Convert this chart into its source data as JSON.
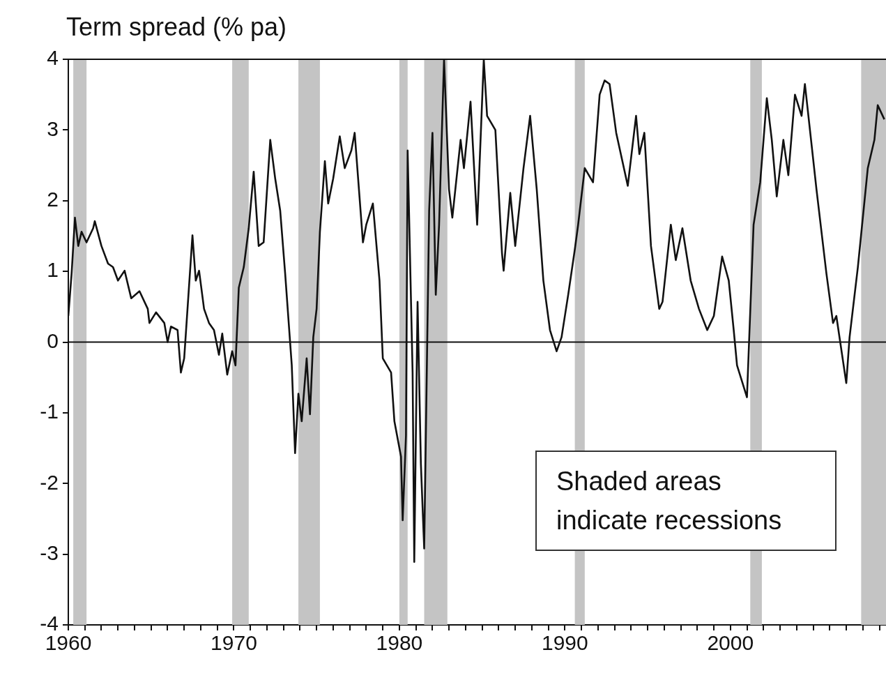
{
  "chart_data": {
    "type": "line",
    "ylabel": "Term spread (% pa)",
    "annotations": [
      "Shaded areas indicate recessions"
    ],
    "x": [
      1960.0,
      1960.2,
      1960.4,
      1960.6,
      1960.8,
      1961.1,
      1961.5,
      1961.6,
      1962.0,
      1962.4,
      1962.7,
      1963.0,
      1963.4,
      1963.8,
      1964.3,
      1964.8,
      1964.9,
      1965.3,
      1965.8,
      1966.0,
      1966.2,
      1966.6,
      1966.8,
      1967.0,
      1967.5,
      1967.7,
      1967.9,
      1968.2,
      1968.5,
      1968.8,
      1969.1,
      1969.3,
      1969.6,
      1969.9,
      1970.1,
      1970.3,
      1970.6,
      1970.9,
      1971.2,
      1971.5,
      1971.8,
      1972.2,
      1972.5,
      1972.8,
      1973.1,
      1973.5,
      1973.7,
      1973.9,
      1974.1,
      1974.4,
      1974.6,
      1974.8,
      1975.0,
      1975.2,
      1975.5,
      1975.7,
      1976.0,
      1976.4,
      1976.7,
      1977.1,
      1977.3,
      1977.8,
      1978.0,
      1978.4,
      1978.8,
      1979.0,
      1979.5,
      1979.7,
      1980.1,
      1980.2,
      1980.4,
      1980.5,
      1980.8,
      1980.9,
      1981.1,
      1981.3,
      1981.5,
      1981.8,
      1982.0,
      1982.2,
      1982.4,
      1982.7,
      1983.0,
      1983.2,
      1983.7,
      1983.9,
      1984.3,
      1984.7,
      1985.1,
      1985.3,
      1985.8,
      1986.2,
      1986.3,
      1986.7,
      1987.0,
      1987.5,
      1987.9,
      1988.3,
      1988.7,
      1989.1,
      1989.5,
      1989.8,
      1990.2,
      1990.6,
      1990.8,
      1991.2,
      1991.7,
      1992.1,
      1992.4,
      1992.7,
      1993.1,
      1993.8,
      1994.3,
      1994.5,
      1994.8,
      1995.2,
      1995.7,
      1995.9,
      1996.4,
      1996.7,
      1997.1,
      1997.6,
      1998.1,
      1998.6,
      1999.0,
      1999.5,
      1999.9,
      2000.2,
      2000.4,
      2001.0,
      2001.4,
      2001.8,
      2002.2,
      2002.5,
      2002.8,
      2003.2,
      2003.5,
      2003.9,
      2004.3,
      2004.5,
      2005.2,
      2005.8,
      2006.2,
      2006.4,
      2007.0,
      2007.2,
      2007.7,
      2008.3,
      2008.7,
      2008.9,
      2009.3
    ],
    "series": [
      {
        "color": "#111111",
        "values": [
          0.37,
          0.97,
          1.76,
          1.36,
          1.56,
          1.41,
          1.61,
          1.71,
          1.36,
          1.11,
          1.06,
          0.87,
          1.01,
          0.62,
          0.72,
          0.47,
          0.27,
          0.42,
          0.27,
          0,
          0.22,
          0.17,
          -0.43,
          -0.23,
          1.51,
          0.87,
          1.01,
          0.47,
          0.27,
          0.17,
          -0.18,
          0.12,
          -0.46,
          -0.13,
          -0.33,
          0.77,
          1.06,
          1.61,
          2.41,
          1.36,
          1.41,
          2.86,
          2.31,
          1.86,
          0.97,
          -0.33,
          -1.57,
          -0.73,
          -1.12,
          -0.23,
          -1.02,
          0.07,
          0.47,
          1.56,
          2.56,
          1.96,
          2.31,
          2.91,
          2.46,
          2.71,
          2.96,
          1.41,
          1.66,
          1.96,
          0.87,
          -0.23,
          -0.43,
          -1.12,
          -1.62,
          -2.52,
          -1.32,
          2.71,
          -0.43,
          -3.11,
          0.57,
          -1.72,
          -2.92,
          1.86,
          2.96,
          0.67,
          1.66,
          4,
          2.16,
          1.76,
          2.86,
          2.46,
          3.4,
          1.66,
          4,
          3.2,
          3.0,
          1.26,
          1.01,
          2.11,
          1.36,
          2.46,
          3.2,
          2.16,
          0.87,
          0.17,
          -0.13,
          0.07,
          0.67,
          1.31,
          1.66,
          2.46,
          2.26,
          3.5,
          3.7,
          3.65,
          2.96,
          2.21,
          3.2,
          2.66,
          2.96,
          1.36,
          0.47,
          0.57,
          1.66,
          1.16,
          1.61,
          0.87,
          0.47,
          0.17,
          0.37,
          1.21,
          0.87,
          0.17,
          -0.33,
          -0.78,
          1.66,
          2.26,
          3.45,
          2.86,
          2.06,
          2.86,
          2.36,
          3.5,
          3.2,
          3.65,
          2.16,
          0.97,
          0.27,
          0.37,
          -0.58,
          0.07,
          1.06,
          2.46,
          2.86,
          3.35,
          3.15
        ]
      }
    ],
    "xlim": [
      1960,
      2009.4
    ],
    "xticks": [
      1960,
      {
        "value": 1961,
        "label": null
      },
      {
        "value": 1962,
        "label": null
      },
      {
        "value": 1963,
        "label": null
      },
      {
        "value": 1964,
        "label": null
      },
      {
        "value": 1965,
        "label": null
      },
      {
        "value": 1966,
        "label": null
      },
      {
        "value": 1967,
        "label": null
      },
      {
        "value": 1968,
        "label": null
      },
      {
        "value": 1969,
        "label": null
      },
      1970,
      {
        "value": 1971,
        "label": null
      },
      {
        "value": 1972,
        "label": null
      },
      {
        "value": 1973,
        "label": null
      },
      {
        "value": 1974,
        "label": null
      },
      {
        "value": 1975,
        "label": null
      },
      {
        "value": 1976,
        "label": null
      },
      {
        "value": 1977,
        "label": null
      },
      {
        "value": 1978,
        "label": null
      },
      {
        "value": 1979,
        "label": null
      },
      1980,
      {
        "value": 1981,
        "label": null
      },
      {
        "value": 1982,
        "label": null
      },
      {
        "value": 1983,
        "label": null
      },
      {
        "value": 1984,
        "label": null
      },
      {
        "value": 1985,
        "label": null
      },
      {
        "value": 1986,
        "label": null
      },
      {
        "value": 1987,
        "label": null
      },
      {
        "value": 1988,
        "label": null
      },
      {
        "value": 1989,
        "label": null
      },
      1990,
      {
        "value": 1991,
        "label": null
      },
      {
        "value": 1992,
        "label": null
      },
      {
        "value": 1993,
        "label": null
      },
      {
        "value": 1994,
        "label": null
      },
      {
        "value": 1995,
        "label": null
      },
      {
        "value": 1996,
        "label": null
      },
      {
        "value": 1997,
        "label": null
      },
      {
        "value": 1998,
        "label": null
      },
      {
        "value": 1999,
        "label": null
      },
      2000,
      {
        "value": 2001,
        "label": null
      },
      {
        "value": 2002,
        "label": null
      },
      {
        "value": 2003,
        "label": null
      },
      {
        "value": 2004,
        "label": null
      },
      {
        "value": 2005,
        "label": null
      },
      {
        "value": 2006,
        "label": null
      },
      {
        "value": 2007,
        "label": null
      },
      {
        "value": 2008,
        "label": null
      },
      {
        "value": 2009,
        "label": null
      }
    ],
    "ylim": [
      -4,
      4
    ],
    "yticks": [
      -4,
      -3,
      -2,
      -1,
      0,
      1,
      2,
      3,
      4
    ],
    "ref_lines": [
      {
        "axis": "y",
        "value": 0,
        "color": "#111111"
      }
    ],
    "bands": [
      {
        "axis": "x",
        "from": 1960.3,
        "to": 1961.1,
        "color": "#c4c4c4"
      },
      {
        "axis": "x",
        "from": 1969.9,
        "to": 1970.9,
        "color": "#c4c4c4"
      },
      {
        "axis": "x",
        "from": 1973.9,
        "to": 1975.2,
        "color": "#c4c4c4"
      },
      {
        "axis": "x",
        "from": 1980.0,
        "to": 1980.5,
        "color": "#c4c4c4"
      },
      {
        "axis": "x",
        "from": 1981.5,
        "to": 1982.9,
        "color": "#c4c4c4"
      },
      {
        "axis": "x",
        "from": 1990.6,
        "to": 1991.2,
        "color": "#c4c4c4"
      },
      {
        "axis": "x",
        "from": 2001.2,
        "to": 2001.9,
        "color": "#c4c4c4"
      },
      {
        "axis": "x",
        "from": 2007.9,
        "to": 2009.4,
        "color": "#c4c4c4"
      }
    ],
    "grid": false,
    "legend": false,
    "marker": "none",
    "line_style": "solid"
  }
}
